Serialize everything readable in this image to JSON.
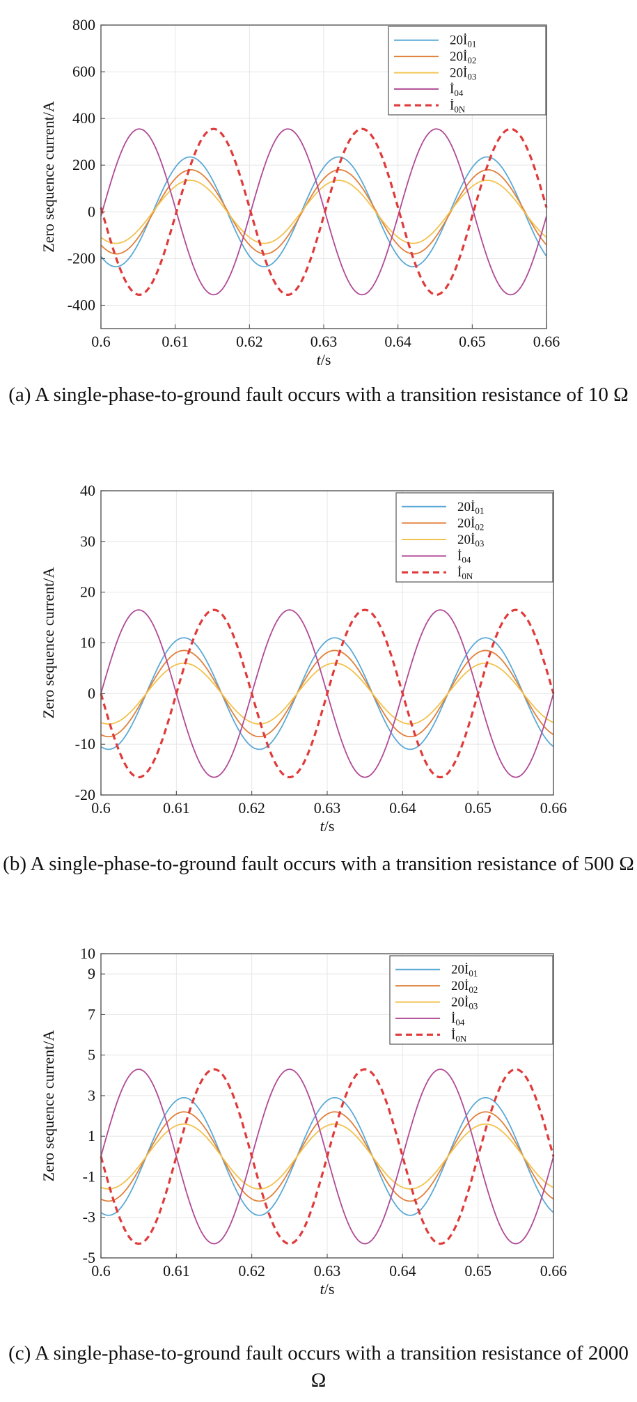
{
  "chart_data": [
    {
      "type": "line",
      "caption": "(a) A single-phase-to-ground fault occurs with a transition resistance of 10 Ω",
      "xlabel": "t/s",
      "ylabel": "Zero sequence current/A",
      "xlim": [
        0.6,
        0.66
      ],
      "ylim": [
        -500,
        800
      ],
      "xticks": [
        "0.6",
        "0.61",
        "0.62",
        "0.63",
        "0.64",
        "0.65",
        "0.66"
      ],
      "yticks": [
        "800",
        "600",
        "400",
        "200",
        "0",
        "-200",
        "-400"
      ],
      "grid": true,
      "legend_position": "top-right",
      "series": [
        {
          "name": "20İ01",
          "color": "#5aa9d6",
          "dashed": false,
          "amplitude": 235,
          "phase_deg": -126
        },
        {
          "name": "20İ02",
          "color": "#e0803a",
          "dashed": false,
          "amplitude": 180,
          "phase_deg": -128
        },
        {
          "name": "20İ03",
          "color": "#f2c24c",
          "dashed": false,
          "amplitude": 135,
          "phase_deg": -126
        },
        {
          "name": "İ04",
          "color": "#b04a96",
          "dashed": false,
          "amplitude": 355,
          "phase_deg": -3
        },
        {
          "name": "İ0N",
          "color": "#e03a3a",
          "dashed": true,
          "amplitude": 355,
          "phase_deg": 177
        }
      ]
    },
    {
      "type": "line",
      "caption": "(b) A single-phase-to-ground fault occurs with a transition resistance of 500 Ω",
      "xlabel": "t/s",
      "ylabel": "Zero sequence current/A",
      "xlim": [
        0.6,
        0.66
      ],
      "ylim": [
        -20,
        40
      ],
      "xticks": [
        "0.6",
        "0.61",
        "0.62",
        "0.63",
        "0.64",
        "0.65",
        "0.66"
      ],
      "yticks": [
        "40",
        "30",
        "20",
        "10",
        "0",
        "-10",
        "-20"
      ],
      "grid": true,
      "legend_position": "top-right",
      "series": [
        {
          "name": "20İ01",
          "color": "#5aa9d6",
          "dashed": false,
          "amplitude": 11,
          "phase_deg": -108
        },
        {
          "name": "20İ02",
          "color": "#e0803a",
          "dashed": false,
          "amplitude": 8.5,
          "phase_deg": -108
        },
        {
          "name": "20İ03",
          "color": "#f2c24c",
          "dashed": false,
          "amplitude": 6,
          "phase_deg": -108
        },
        {
          "name": "İ04",
          "color": "#b04a96",
          "dashed": false,
          "amplitude": 16.5,
          "phase_deg": 0
        },
        {
          "name": "İ0N",
          "color": "#e03a3a",
          "dashed": true,
          "amplitude": 16.5,
          "phase_deg": 180
        }
      ]
    },
    {
      "type": "line",
      "caption": "(c) A single-phase-to-ground fault occurs with a transition resistance of 2000 Ω",
      "xlabel": "t/s",
      "ylabel": "Zero sequence current/A",
      "xlim": [
        0.6,
        0.66
      ],
      "ylim": [
        -5,
        10
      ],
      "xticks": [
        "0.6",
        "0.61",
        "0.62",
        "0.63",
        "0.64",
        "0.65",
        "0.66"
      ],
      "yticks": [
        "10",
        "9",
        "7",
        "5",
        "3",
        "1",
        "-1",
        "-3",
        "-5"
      ],
      "grid": true,
      "legend_position": "top-right",
      "series": [
        {
          "name": "20İ01",
          "color": "#5aa9d6",
          "dashed": false,
          "amplitude": 2.9,
          "phase_deg": -108
        },
        {
          "name": "20İ02",
          "color": "#e0803a",
          "dashed": false,
          "amplitude": 2.2,
          "phase_deg": -108
        },
        {
          "name": "20İ03",
          "color": "#f2c24c",
          "dashed": false,
          "amplitude": 1.6,
          "phase_deg": -108
        },
        {
          "name": "İ04",
          "color": "#b04a96",
          "dashed": false,
          "amplitude": 4.3,
          "phase_deg": 0
        },
        {
          "name": "İ0N",
          "color": "#e03a3a",
          "dashed": true,
          "amplitude": 4.3,
          "phase_deg": 180
        }
      ]
    }
  ]
}
